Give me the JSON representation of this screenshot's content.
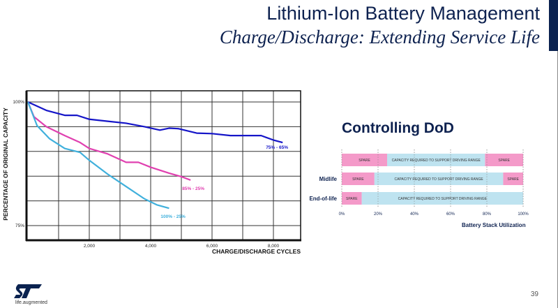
{
  "header": {
    "title": "Lithium-Ion Battery Management",
    "subtitle": "Charge/Discharge:  Extending Service Life"
  },
  "footer": {
    "page_number": "39",
    "logo_tagline": "life.augmented"
  },
  "colors": {
    "navy": "#0e2250",
    "series_75_65": "#1515c8",
    "series_85_25": "#e040b0",
    "series_100_25": "#40b0dc",
    "spare": "#f49ac9",
    "capacity": "#bee3f0"
  },
  "chart_data": [
    {
      "type": "line",
      "title": "",
      "xlabel": "CHARGE/DISCHARGE CYCLES",
      "ylabel": "PERCENTAGE OF ORIGINAL CAPACITY",
      "xlim": [
        0,
        8700
      ],
      "ylim": [
        72,
        101.5
      ],
      "x_ticks": [
        {
          "value": 2000,
          "label": "2,000"
        },
        {
          "value": 4000,
          "label": "4,000"
        },
        {
          "value": 6000,
          "label": "6,000"
        },
        {
          "value": 8000,
          "label": "8,000"
        }
      ],
      "y_ticks": [
        {
          "value": 100,
          "label": "100%"
        },
        {
          "value": 75,
          "label": "75%"
        }
      ],
      "grid": true,
      "series": [
        {
          "name": "75% - 65%",
          "color_key": "series_75_65",
          "x": [
            0,
            600,
            1200,
            1600,
            2000,
            2600,
            3200,
            3800,
            4300,
            4600,
            4900,
            5500,
            6000,
            6600,
            7000,
            7600,
            8000,
            8300
          ],
          "y": [
            100,
            98.3,
            97.3,
            97.3,
            96.5,
            96.1,
            95.7,
            95,
            94.3,
            94.7,
            94.6,
            93.7,
            93.6,
            93.2,
            93.2,
            93.2,
            92.3,
            91.8
          ]
        },
        {
          "name": "85% - 25%",
          "color_key": "series_85_25",
          "x": [
            0,
            200,
            600,
            1200,
            1700,
            2000,
            2600,
            3200,
            3600,
            4000,
            4600,
            5000,
            5300
          ],
          "y": [
            100,
            97,
            95,
            93.2,
            91.8,
            90.6,
            89.5,
            87.8,
            87.8,
            86.8,
            85.6,
            84.9,
            84.2
          ]
        },
        {
          "name": "100% - 25%",
          "color_key": "series_100_25",
          "x": [
            0,
            300,
            700,
            1200,
            1700,
            2000,
            2600,
            3200,
            3800,
            4200,
            4600
          ],
          "y": [
            100,
            95.2,
            92.6,
            90.6,
            89.8,
            88.2,
            85.4,
            82.9,
            80.4,
            79.2,
            78.5
          ]
        }
      ]
    },
    {
      "type": "bar",
      "orientation": "horizontal-stacked",
      "title": "Controlling DoD",
      "xlabel": "Battery Stack Utilization",
      "xlim": [
        0,
        100
      ],
      "x_ticks": [
        "0%",
        "20%",
        "40%",
        "60%",
        "80%",
        "100%"
      ],
      "rows": [
        {
          "label": "",
          "segments": [
            {
              "kind": "spare",
              "label": "SPARE",
              "start": 0,
              "end": 25
            },
            {
              "kind": "capacity",
              "label": "CAPACITY REQUIRED TO SUPPORT DRIVING RANGE",
              "start": 25,
              "end": 79
            },
            {
              "kind": "spare",
              "label": "SPARE",
              "start": 79,
              "end": 100
            }
          ]
        },
        {
          "label": "Midlife",
          "segments": [
            {
              "kind": "spare",
              "label": "SPARE",
              "start": 0,
              "end": 18
            },
            {
              "kind": "capacity",
              "label": "CAPACITY REQUIRED TO SUPPORT DRIVING RANGE",
              "start": 18,
              "end": 89
            },
            {
              "kind": "spare",
              "label": "SPARE",
              "start": 89,
              "end": 100
            }
          ]
        },
        {
          "label": "End-of-life",
          "segments": [
            {
              "kind": "spare",
              "label": "SPARE",
              "start": 0,
              "end": 11
            },
            {
              "kind": "capacity",
              "label": "CAPACITY REQUIRED TO SUPPORT DRIVING RANGE",
              "start": 11,
              "end": 100
            }
          ]
        }
      ]
    }
  ]
}
